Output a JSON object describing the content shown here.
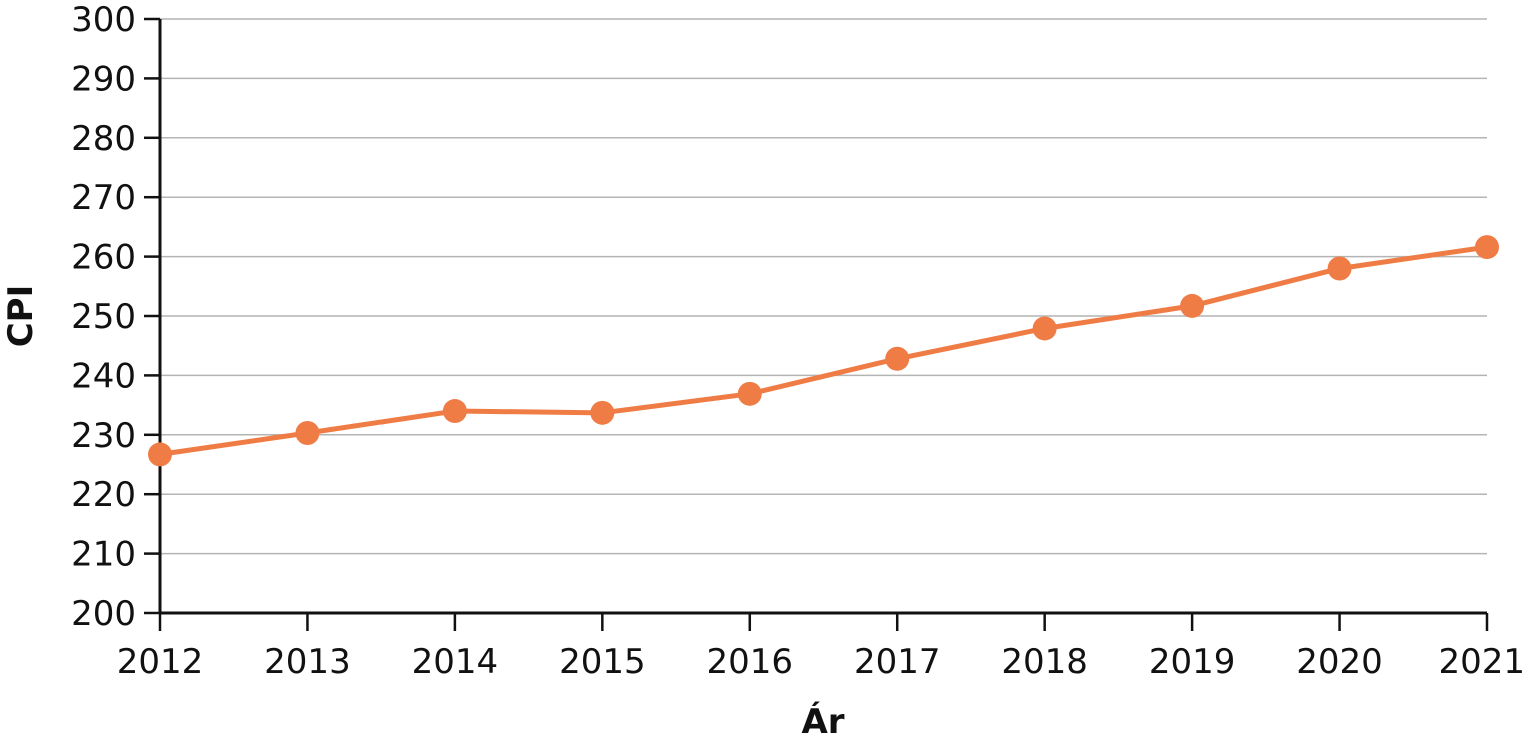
{
  "chart_data": {
    "type": "line",
    "title": "",
    "xlabel": "Ár",
    "ylabel": "CPI",
    "x": [
      2012,
      2013,
      2014,
      2015,
      2016,
      2017,
      2018,
      2019,
      2020,
      2021
    ],
    "series": [
      {
        "values": [
          226.7,
          230.3,
          234.0,
          233.7,
          236.9,
          242.8,
          247.9,
          251.7,
          258.0,
          261.6
        ]
      }
    ],
    "ylim": [
      200,
      300
    ],
    "yticks": [
      200,
      210,
      220,
      230,
      240,
      250,
      260,
      270,
      280,
      290,
      300
    ],
    "grid": true,
    "legend": "none",
    "colors": {
      "line": "#f07c45",
      "marker": "#f07c45",
      "grid": "#b4b4b4",
      "axis": "#111111"
    }
  }
}
